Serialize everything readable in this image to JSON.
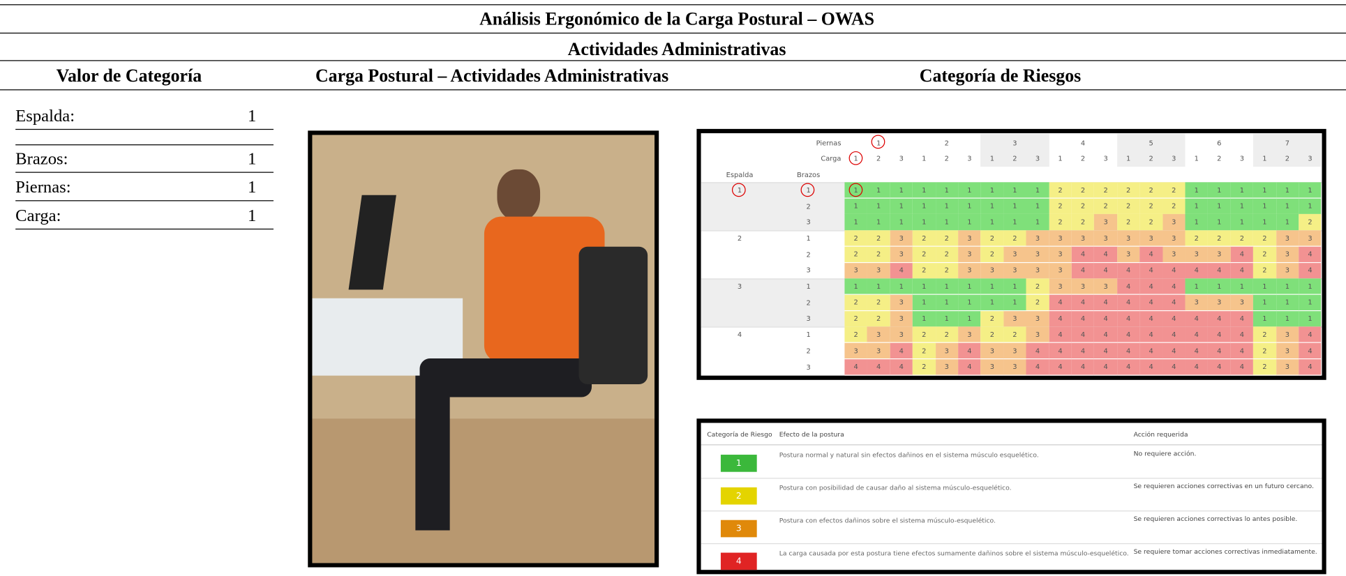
{
  "header": {
    "title": "Análisis Ergonómico de la Carga Postural – OWAS",
    "subtitle": "Actividades Administrativas",
    "columns": [
      "Valor de Categoría",
      "Carga Postural – Actividades Administrativas",
      "Categoría de Riesgos"
    ]
  },
  "categories": [
    {
      "label": "Espalda:",
      "value": 1
    },
    {
      "label": "Brazos:",
      "value": 1
    },
    {
      "label": "Piernas:",
      "value": 1
    },
    {
      "label": "Carga:",
      "value": 1
    }
  ],
  "matrix": {
    "piernas_label": "Piernas",
    "carga_label": "Carga",
    "espalda_label": "Espalda",
    "brazos_label": "Brazos",
    "piernas": [
      1,
      2,
      3,
      4,
      5,
      6,
      7
    ],
    "carga": [
      1,
      2,
      3
    ],
    "brazos": [
      1,
      2,
      3
    ],
    "groups": [
      {
        "espalda": 1,
        "rows": [
          [
            1,
            1,
            1,
            1,
            1,
            1,
            1,
            1,
            1,
            2,
            2,
            2,
            2,
            2,
            2,
            1,
            1,
            1,
            1,
            1,
            1
          ],
          [
            1,
            1,
            1,
            1,
            1,
            1,
            1,
            1,
            1,
            2,
            2,
            2,
            2,
            2,
            2,
            1,
            1,
            1,
            1,
            1,
            1
          ],
          [
            1,
            1,
            1,
            1,
            1,
            1,
            1,
            1,
            1,
            2,
            2,
            3,
            2,
            2,
            3,
            1,
            1,
            1,
            1,
            1,
            2
          ]
        ]
      },
      {
        "espalda": 2,
        "rows": [
          [
            2,
            2,
            3,
            2,
            2,
            3,
            2,
            2,
            3,
            3,
            3,
            3,
            3,
            3,
            3,
            2,
            2,
            2,
            2,
            3,
            3
          ],
          [
            2,
            2,
            3,
            2,
            2,
            3,
            2,
            3,
            3,
            3,
            4,
            4,
            3,
            4,
            3,
            3,
            3,
            4,
            2,
            3,
            4
          ],
          [
            3,
            3,
            4,
            2,
            2,
            3,
            3,
            3,
            3,
            3,
            4,
            4,
            4,
            4,
            4,
            4,
            4,
            4,
            2,
            3,
            4
          ]
        ]
      },
      {
        "espalda": 3,
        "rows": [
          [
            1,
            1,
            1,
            1,
            1,
            1,
            1,
            1,
            2,
            3,
            3,
            3,
            4,
            4,
            4,
            1,
            1,
            1,
            1,
            1,
            1
          ],
          [
            2,
            2,
            3,
            1,
            1,
            1,
            1,
            1,
            2,
            4,
            4,
            4,
            4,
            4,
            4,
            3,
            3,
            3,
            1,
            1,
            1
          ],
          [
            2,
            2,
            3,
            1,
            1,
            1,
            2,
            3,
            3,
            4,
            4,
            4,
            4,
            4,
            4,
            4,
            4,
            4,
            1,
            1,
            1
          ]
        ]
      },
      {
        "espalda": 4,
        "rows": [
          [
            2,
            3,
            3,
            2,
            2,
            3,
            2,
            2,
            3,
            4,
            4,
            4,
            4,
            4,
            4,
            4,
            4,
            4,
            2,
            3,
            4
          ],
          [
            3,
            3,
            4,
            2,
            3,
            4,
            3,
            3,
            4,
            4,
            4,
            4,
            4,
            4,
            4,
            4,
            4,
            4,
            2,
            3,
            4
          ],
          [
            4,
            4,
            4,
            2,
            3,
            4,
            3,
            3,
            4,
            4,
            4,
            4,
            4,
            4,
            4,
            4,
            4,
            4,
            2,
            3,
            4
          ]
        ]
      }
    ]
  },
  "legend": {
    "headers": [
      "Categoría de Riesgo",
      "Efecto de la postura",
      "Acción requerida"
    ],
    "rows": [
      {
        "category": 1,
        "effect": "Postura normal y natural sin efectos dañinos en el sistema músculo esquelético.",
        "action": "No requiere acción."
      },
      {
        "category": 2,
        "effect": "Postura con posibilidad de causar daño al sistema músculo-esquelético.",
        "action": "Se requieren acciones correctivas en un futuro cercano."
      },
      {
        "category": 3,
        "effect": "Postura con efectos dañinos sobre el sistema músculo-esquelético.",
        "action": "Se requieren acciones correctivas lo antes posible."
      },
      {
        "category": 4,
        "effect": "La carga causada por esta postura tiene efectos sumamente dañinos sobre el sistema músculo-esquelético.",
        "action": "Se requiere tomar acciones correctivas inmediatamente."
      }
    ]
  }
}
